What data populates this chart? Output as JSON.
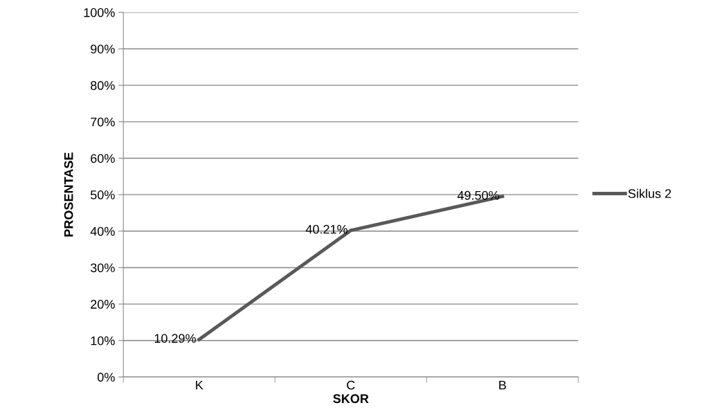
{
  "chart_data": {
    "type": "line",
    "xlabel": "SKOR",
    "ylabel": "PROSENTASE",
    "categories": [
      "K",
      "C",
      "B"
    ],
    "series": [
      {
        "name": "Siklus 2",
        "color": "#595959",
        "values": [
          10.29,
          40.21,
          49.5
        ],
        "value_labels": [
          "10.29%",
          "40.21%",
          "49.50%"
        ]
      }
    ],
    "ylim": [
      0,
      100
    ],
    "yticks": [
      {
        "value": 0,
        "label": "0%"
      },
      {
        "value": 10,
        "label": "10%"
      },
      {
        "value": 20,
        "label": "20%"
      },
      {
        "value": 30,
        "label": "30%"
      },
      {
        "value": 40,
        "label": "40%"
      },
      {
        "value": 50,
        "label": "50%"
      },
      {
        "value": 60,
        "label": "60%"
      },
      {
        "value": 70,
        "label": "70%"
      },
      {
        "value": 80,
        "label": "80%"
      },
      {
        "value": 90,
        "label": "90%"
      },
      {
        "value": 100,
        "label": "100%"
      }
    ],
    "grid": "y",
    "legend": "right",
    "marker": "none",
    "line_style": "solid"
  }
}
